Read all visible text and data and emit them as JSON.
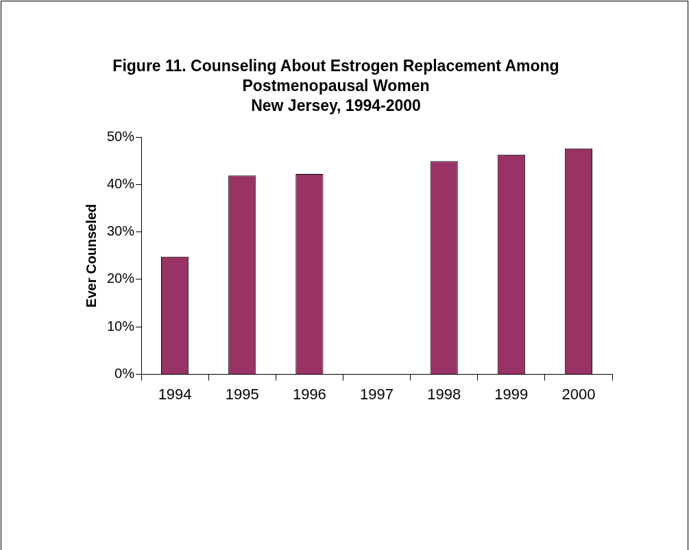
{
  "chart_data": {
    "type": "bar",
    "title": "Figure 11.  Counseling About Estrogen Replacement Among Postmenopausal Women",
    "subtitle": "New Jersey, 1994-2000",
    "ylabel": "Ever Counseled",
    "categories": [
      "1994",
      "1995",
      "1996",
      "1997",
      "1998",
      "1999",
      "2000"
    ],
    "values": [
      24.8,
      41.9,
      42.2,
      null,
      44.9,
      46.3,
      47.6
    ],
    "color": "#993366",
    "ylim": [
      0,
      50
    ],
    "yticks": [
      {
        "value": 0,
        "label": "0%"
      },
      {
        "value": 10,
        "label": "10%"
      },
      {
        "value": 20,
        "label": "20%"
      },
      {
        "value": 30,
        "label": "30%"
      },
      {
        "value": 40,
        "label": "40%"
      },
      {
        "value": 50,
        "label": "50%"
      }
    ],
    "grid": false,
    "legend": false
  }
}
